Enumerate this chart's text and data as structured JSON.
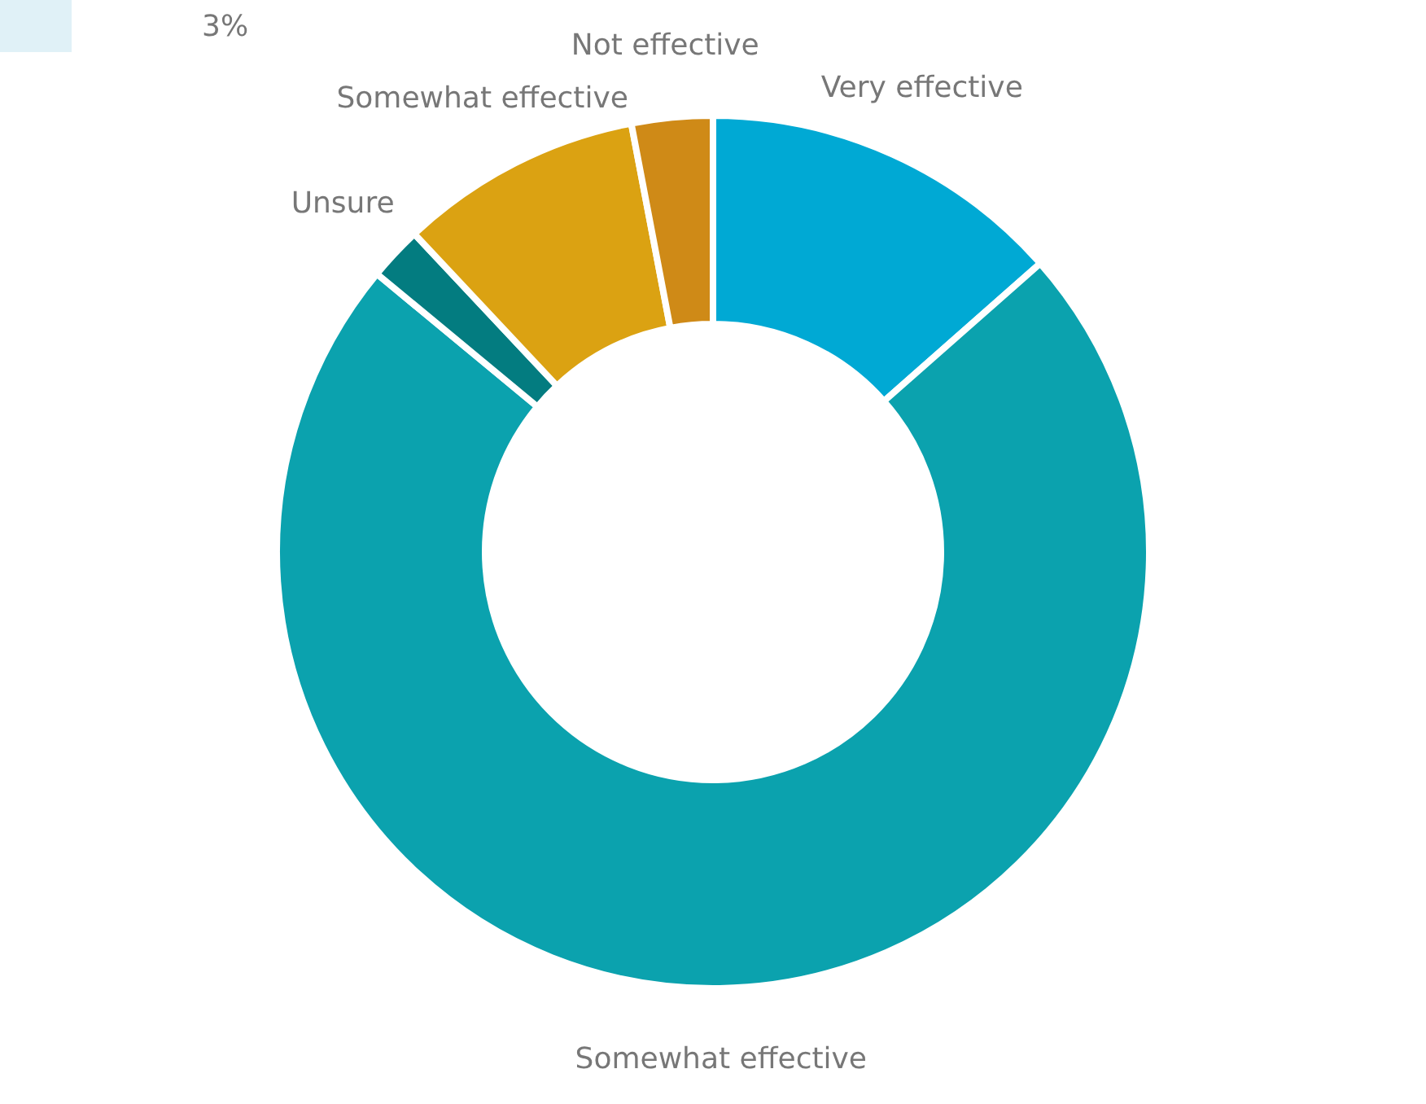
{
  "chart_data": {
    "type": "donut",
    "categories": [
      "Very effective",
      "Somewhat effective",
      "Unsure",
      "Somewhat effective",
      "Not effective"
    ],
    "values": [
      13.5,
      72.5,
      2,
      9,
      3
    ],
    "colors": [
      "#00a9d4",
      "#0ba2ae",
      "#037c80",
      "#dba212",
      "#cf8a17"
    ],
    "annotations": [
      "3%"
    ]
  }
}
